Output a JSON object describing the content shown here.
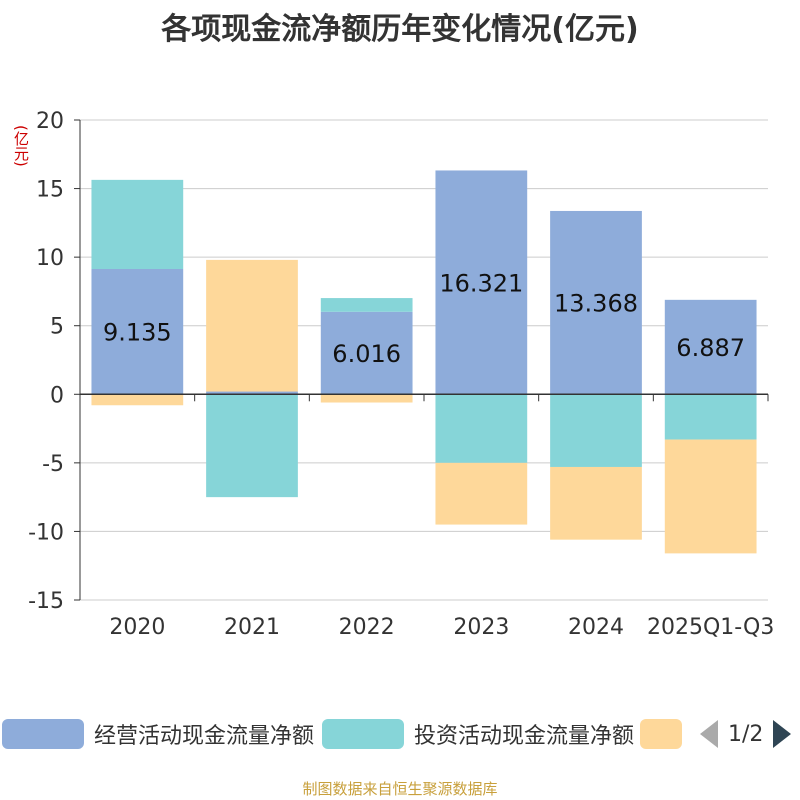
{
  "title": "各项现金流净额历年变化情况(亿元)",
  "y_unit": "(亿元)",
  "source": "制图数据来自恒生聚源数据库",
  "legend": {
    "items": [
      {
        "label": "经营活动现金流量净额",
        "color": "#8eacda"
      },
      {
        "label": "投资活动现金流量净额",
        "color": "#86d5d8"
      },
      {
        "label": "",
        "color": "#fed89a"
      }
    ],
    "pager": "1/2"
  },
  "chart_data": {
    "type": "bar",
    "stacked": true,
    "categories": [
      "2020",
      "2021",
      "2022",
      "2023",
      "2024",
      "2025Q1-Q3"
    ],
    "ylim": [
      -15,
      20
    ],
    "yticks": [
      20,
      15,
      10,
      5,
      0,
      -5,
      -10,
      -15
    ],
    "ytick_labels": [
      "20",
      "15",
      "10",
      "5",
      "0",
      "-5",
      "-10",
      "-15"
    ],
    "series": [
      {
        "name": "经营活动现金流量净额",
        "color": "#8eacda",
        "values": [
          9.135,
          0.2,
          6.016,
          16.321,
          13.368,
          6.887
        ],
        "labels": [
          "9.135",
          "",
          "6.016",
          "16.321",
          "13.368",
          "6.887"
        ]
      },
      {
        "name": "投资活动现金流量净额",
        "color": "#86d5d8",
        "values": [
          6.5,
          -7.5,
          1.0,
          -5.0,
          -5.3,
          -3.3
        ]
      },
      {
        "name": "",
        "color": "#fed89a",
        "values": [
          -0.8,
          9.6,
          -0.6,
          -4.5,
          -5.3,
          -8.3
        ]
      }
    ]
  }
}
